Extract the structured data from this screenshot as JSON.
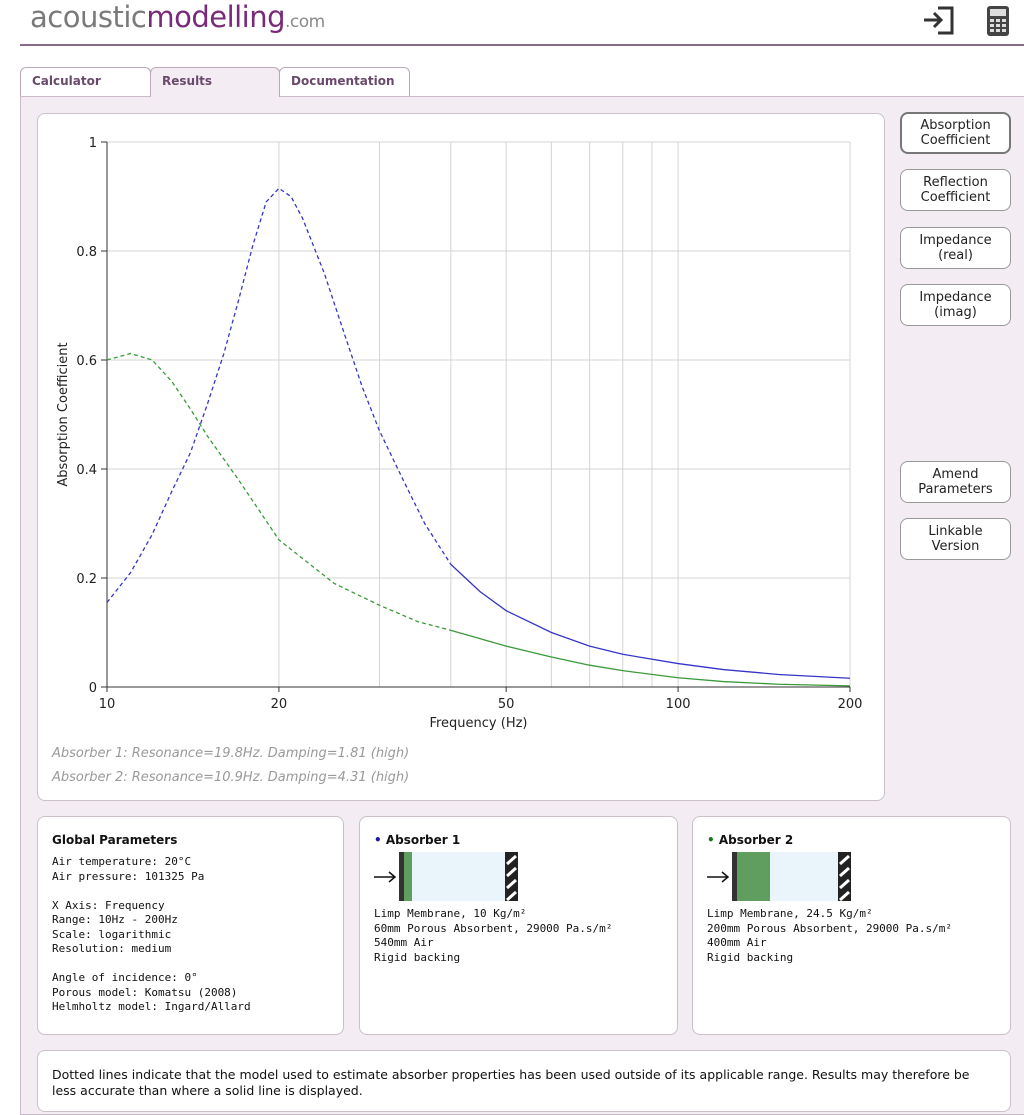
{
  "header": {
    "logo_main": "acoustic",
    "logo_accent": "modelling",
    "logo_suffix": ".com"
  },
  "tabs": [
    "Calculator",
    "Results",
    "Documentation"
  ],
  "buttons": [
    "Absorption Coefficient",
    "Reflection Coefficient",
    "Impedance (real)",
    "Impedance (imag)",
    "Amend Parameters",
    "Linkable Version"
  ],
  "chart_data": {
    "type": "line",
    "xlabel": "Frequency (Hz)",
    "ylabel": "Absorption Coefficient",
    "xlog": true,
    "xlim": [
      10,
      200
    ],
    "ylim": [
      0,
      1
    ],
    "xticks": [
      10,
      20,
      50,
      100,
      200
    ],
    "minor_xgrid": [
      30,
      40,
      60,
      70,
      80,
      90
    ],
    "yticks": [
      0,
      0.2,
      0.4,
      0.6,
      0.8,
      1
    ],
    "grid": true,
    "series": [
      {
        "color": "#3535c8",
        "dash": true,
        "x": [
          10,
          11,
          12,
          13,
          14,
          15,
          16,
          17,
          18,
          19,
          20,
          21,
          22,
          24,
          26,
          28,
          30,
          33,
          36,
          40
        ],
        "values": [
          0.155,
          0.21,
          0.28,
          0.36,
          0.43,
          0.52,
          0.61,
          0.71,
          0.81,
          0.89,
          0.915,
          0.9,
          0.86,
          0.76,
          0.65,
          0.55,
          0.47,
          0.38,
          0.3,
          0.225
        ]
      },
      {
        "color": "#3535c8",
        "dash": false,
        "x": [
          40,
          45,
          50,
          60,
          70,
          80,
          100,
          120,
          150,
          200
        ],
        "values": [
          0.225,
          0.175,
          0.14,
          0.1,
          0.075,
          0.06,
          0.043,
          0.032,
          0.023,
          0.016
        ]
      },
      {
        "color": "#3a9a3a",
        "dash": true,
        "x": [
          10,
          11,
          12,
          13,
          14,
          15,
          17,
          20,
          25,
          30,
          35,
          40
        ],
        "values": [
          0.6,
          0.612,
          0.6,
          0.56,
          0.51,
          0.46,
          0.38,
          0.27,
          0.19,
          0.15,
          0.12,
          0.104
        ]
      },
      {
        "color": "#3a9a3a",
        "dash": false,
        "x": [
          40,
          50,
          60,
          70,
          80,
          100,
          120,
          150,
          200
        ],
        "values": [
          0.104,
          0.075,
          0.055,
          0.04,
          0.03,
          0.017,
          0.01,
          0.005,
          0.002
        ]
      }
    ]
  },
  "notes": [
    "Absorber 1: Resonance=19.8Hz. Damping=1.81 (high)",
    "Absorber 2: Resonance=10.9Hz. Damping=4.31 (high)"
  ],
  "global": {
    "title": "Global Parameters",
    "groups": [
      [
        "Air temperature: 20°C",
        "Air pressure: 101325 Pa"
      ],
      [
        "X Axis: Frequency",
        "Range: 10Hz - 200Hz",
        "Scale: logarithmic",
        "Resolution: medium"
      ],
      [
        "Angle of incidence: 0°",
        "Porous model: Komatsu (2008)",
        "Helmholtz model: Ingard/Allard"
      ]
    ]
  },
  "absorbers": [
    {
      "title": "Absorber 1",
      "color": "#1a1aa0",
      "lines": [
        "Limp Membrane, 10 Kg/m²",
        "60mm Porous Absorbent, 29000 Pa.s/m²",
        "540mm Air",
        "Rigid backing"
      ]
    },
    {
      "title": "Absorber 2",
      "color": "#1a7a1a",
      "lines": [
        "Limp Membrane, 24.5 Kg/m²",
        "200mm Porous Absorbent, 29000 Pa.s/m²",
        "400mm Air",
        "Rigid backing"
      ]
    }
  ],
  "footer_note": "Dotted lines indicate that the model used to estimate absorber properties has been used outside of its applicable range. Results may therefore be less accurate than where a solid line is displayed."
}
